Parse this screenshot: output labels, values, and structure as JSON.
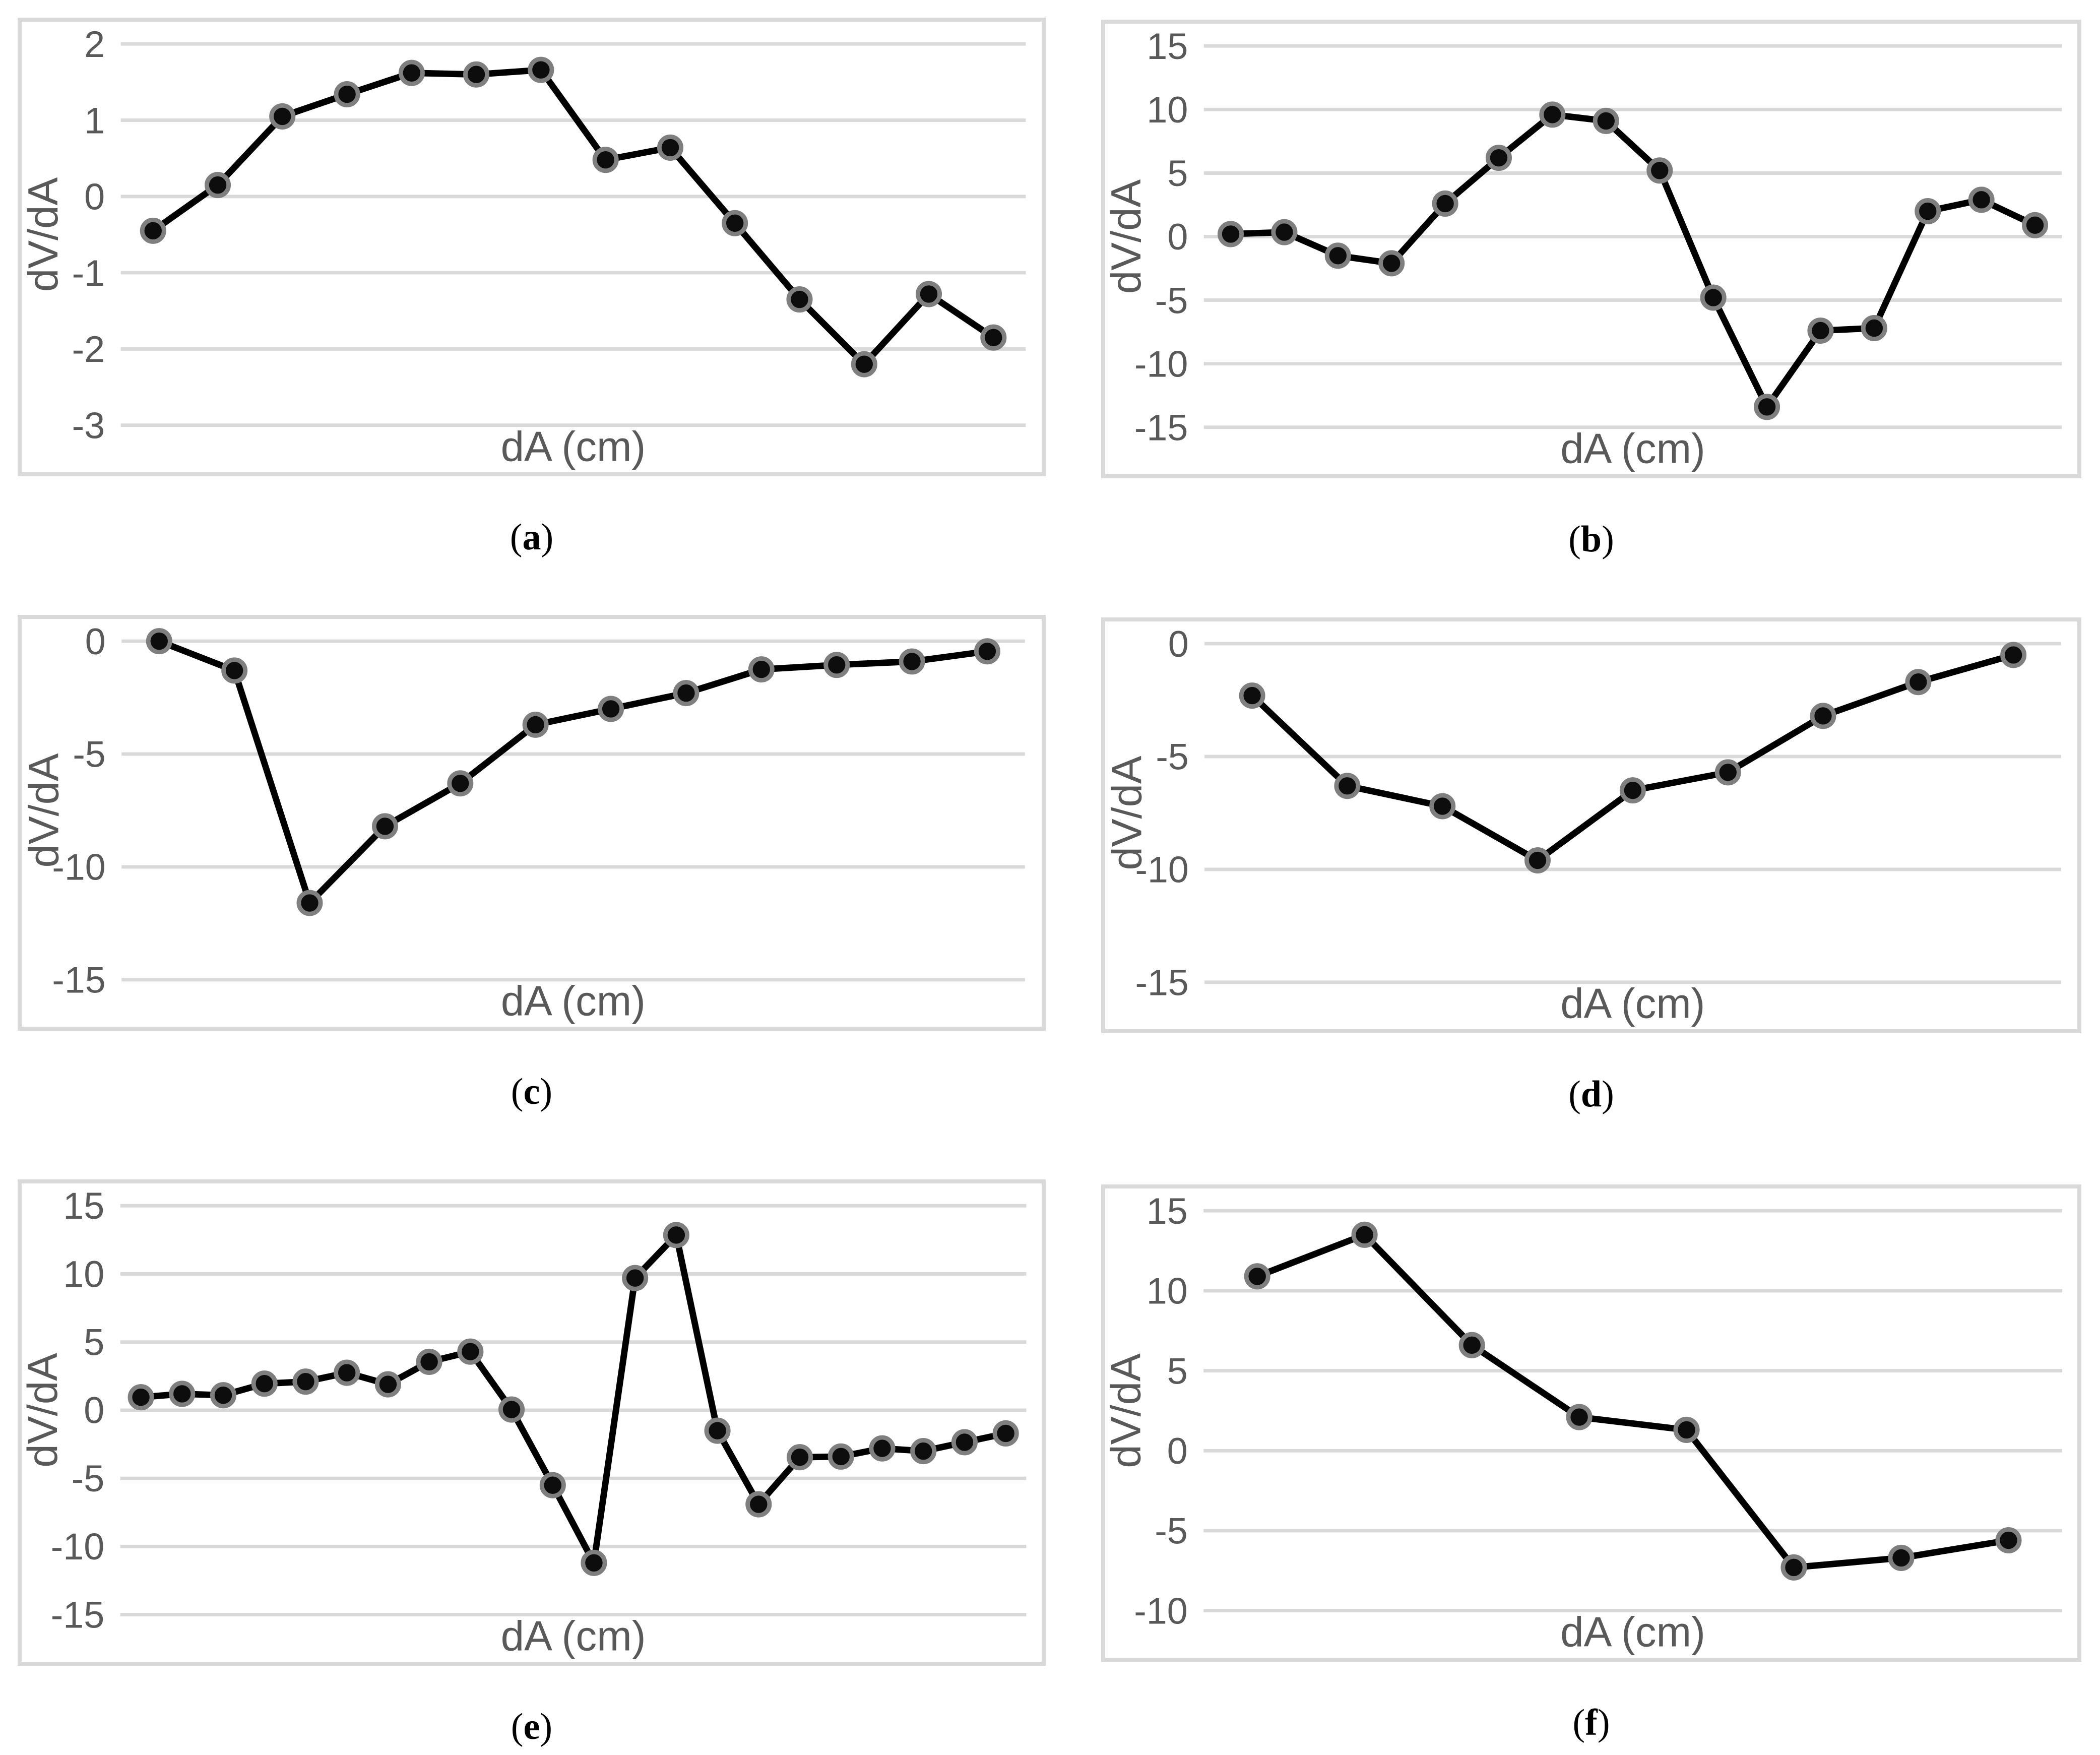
{
  "page": {
    "background": "#ffffff",
    "description": "Six line charts of dV/dA versus dA (cm), panels (a) through (f)"
  },
  "theme": {
    "axis_text_color": "#595959",
    "gridline_color": "#d9d9d9",
    "panel_border_color": "#d9d9d9",
    "line_color": "#000000",
    "marker_fill": "#0d0d0d",
    "marker_ring": "#7f7f7f",
    "caption_color": "#000000"
  },
  "captions": {
    "open": "(",
    "close": ")"
  },
  "chart_data": [
    {
      "id": "a",
      "letter": "a",
      "type": "line",
      "title": "",
      "xlabel": "dA (cm)",
      "ylabel": "dV/dA",
      "yticks": [
        2,
        1,
        0,
        -1,
        -2,
        -3
      ],
      "ylim": [
        -3.7,
        2.4
      ],
      "x_tick_labels": [],
      "grid": "horizontal",
      "legend": "none",
      "marker": "circle",
      "values": [
        -0.45,
        0.15,
        1.05,
        1.34,
        1.62,
        1.6,
        1.66,
        0.48,
        0.64,
        -0.35,
        -1.35,
        -2.2,
        -1.28,
        -1.85
      ]
    },
    {
      "id": "b",
      "letter": "b",
      "type": "line",
      "title": "",
      "xlabel": "dA (cm)",
      "ylabel": "dV/dA",
      "yticks": [
        15,
        10,
        5,
        0,
        -5,
        -10,
        -15
      ],
      "ylim": [
        -18.7,
        16.8
      ],
      "x_tick_labels": [],
      "grid": "horizontal",
      "legend": "none",
      "marker": "circle",
      "values": [
        0.2,
        0.35,
        -1.5,
        -2.1,
        2.6,
        6.2,
        9.6,
        9.1,
        5.2,
        -4.8,
        -13.4,
        -7.4,
        -7.2,
        2.0,
        2.9,
        0.9
      ]
    },
    {
      "id": "c",
      "letter": "c",
      "type": "line",
      "title": "",
      "xlabel": "dA (cm)",
      "ylabel": "dV/dA",
      "yticks": [
        0,
        -5,
        -10,
        -15
      ],
      "ylim": [
        -18.7,
        1.8
      ],
      "x_tick_labels": [],
      "grid": "horizontal",
      "legend": "none",
      "marker": "circle",
      "values": [
        0.0,
        -1.3,
        -11.6,
        -8.2,
        -6.3,
        -3.7,
        -3.0,
        -2.3,
        -1.25,
        -1.05,
        -0.9,
        -0.45
      ]
    },
    {
      "id": "d",
      "letter": "d",
      "type": "line",
      "title": "",
      "xlabel": "dA (cm)",
      "ylabel": "dV/dA",
      "yticks": [
        0,
        -5,
        -10,
        -15
      ],
      "ylim": [
        -18.7,
        1.8
      ],
      "x_tick_labels": [],
      "grid": "horizontal",
      "legend": "none",
      "marker": "circle",
      "values": [
        -2.3,
        -6.3,
        -7.2,
        -9.6,
        -6.5,
        -5.7,
        -3.2,
        -1.7,
        -0.5
      ]
    },
    {
      "id": "e",
      "letter": "e",
      "type": "line",
      "title": "",
      "xlabel": "dA (cm)",
      "ylabel": "dV/dA",
      "yticks": [
        15,
        10,
        5,
        0,
        -5,
        -10,
        -15
      ],
      "ylim": [
        -18.7,
        16.8
      ],
      "x_tick_labels": [],
      "grid": "horizontal",
      "legend": "none",
      "marker": "circle",
      "values": [
        0.95,
        1.2,
        1.1,
        1.95,
        2.1,
        2.75,
        1.9,
        3.55,
        4.3,
        0.05,
        -5.5,
        -11.2,
        9.7,
        12.85,
        -1.5,
        -6.9,
        -3.45,
        -3.4,
        -2.8,
        -3.0,
        -2.35,
        -1.7
      ]
    },
    {
      "id": "f",
      "letter": "f",
      "type": "line",
      "title": "",
      "xlabel": "dA (cm)",
      "ylabel": "dV/dA",
      "yticks": [
        15,
        10,
        5,
        0,
        -5,
        -10
      ],
      "ylim": [
        -13.7,
        16.8
      ],
      "x_tick_labels": [],
      "grid": "horizontal",
      "legend": "none",
      "marker": "circle",
      "values": [
        10.9,
        13.5,
        6.6,
        2.1,
        1.3,
        -7.3,
        -6.7,
        -5.6
      ]
    }
  ]
}
